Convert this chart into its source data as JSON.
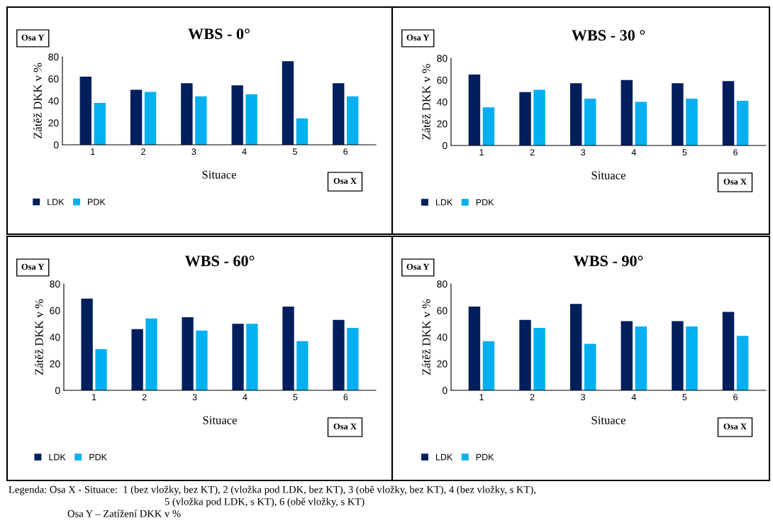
{
  "chart_data": [
    {
      "type": "bar",
      "title": "WBS - 0°",
      "xlabel": "Situace",
      "ylabel": "Zátěž DKK v %",
      "categories": [
        "1",
        "2",
        "3",
        "4",
        "5",
        "6"
      ],
      "ylim": [
        0,
        80
      ],
      "yticks": [
        0,
        20,
        40,
        60,
        80
      ],
      "grid": false,
      "legend": "bottom left",
      "annotations": [
        "Osa Y",
        "Osa X"
      ],
      "series": [
        {
          "name": "LDK",
          "color": "#001f5c",
          "values": [
            62,
            50,
            56,
            54,
            76,
            56
          ]
        },
        {
          "name": "PDK",
          "color": "#00b0f0",
          "values": [
            38,
            48,
            44,
            46,
            24,
            44
          ]
        }
      ]
    },
    {
      "type": "bar",
      "title": "WBS - 30 °",
      "xlabel": "Situace",
      "ylabel": "Zátěž DKK v %",
      "categories": [
        "1",
        "2",
        "3",
        "4",
        "5",
        "6"
      ],
      "ylim": [
        0,
        80
      ],
      "yticks": [
        0,
        20,
        40,
        60,
        80
      ],
      "grid": false,
      "legend": "bottom left",
      "annotations": [
        "Osa Y",
        "Osa X"
      ],
      "series": [
        {
          "name": "LDK",
          "color": "#001f5c",
          "values": [
            65,
            49,
            57,
            60,
            57,
            59
          ]
        },
        {
          "name": "PDK",
          "color": "#00b0f0",
          "values": [
            35,
            51,
            43,
            40,
            43,
            41
          ]
        }
      ]
    },
    {
      "type": "bar",
      "title": "WBS - 60°",
      "xlabel": "Situace",
      "ylabel": "Zátěž DKK v %",
      "categories": [
        "1",
        "2",
        "3",
        "4",
        "5",
        "6"
      ],
      "ylim": [
        0,
        80
      ],
      "yticks": [
        0,
        20,
        40,
        60,
        80
      ],
      "grid": false,
      "legend": "bottom left",
      "annotations": [
        "Osa Y",
        "Osa X"
      ],
      "series": [
        {
          "name": "LDK",
          "color": "#001f5c",
          "values": [
            69,
            46,
            55,
            50,
            63,
            53
          ]
        },
        {
          "name": "PDK",
          "color": "#00b0f0",
          "values": [
            31,
            54,
            45,
            50,
            37,
            47
          ]
        }
      ]
    },
    {
      "type": "bar",
      "title": "WBS - 90°",
      "xlabel": "Situace",
      "ylabel": "Zátěž DKK v %",
      "categories": [
        "1",
        "2",
        "3",
        "4",
        "5",
        "6"
      ],
      "ylim": [
        0,
        80
      ],
      "yticks": [
        0,
        20,
        40,
        60,
        80
      ],
      "grid": false,
      "legend": "bottom left",
      "annotations": [
        "Osa Y",
        "Osa X",
        "Legenda: Osa X - Situace:  1 (bez vložky, bez KT), 2 (vložka pod LDK, bez KT), 3 (obě vložky, bez KT), 4 (bez vložky, s KT),",
        "5 (vložka pod LDK, s KT), 6 (obě vložky, s KT)",
        "Osa Y – Zatížení DKK v %"
      ],
      "series": [
        {
          "name": "LDK",
          "color": "#001f5c",
          "values": [
            63,
            53,
            65,
            52,
            52,
            59
          ]
        },
        {
          "name": "PDK",
          "color": "#00b0f0",
          "values": [
            37,
            47,
            35,
            48,
            48,
            41
          ]
        }
      ]
    }
  ]
}
